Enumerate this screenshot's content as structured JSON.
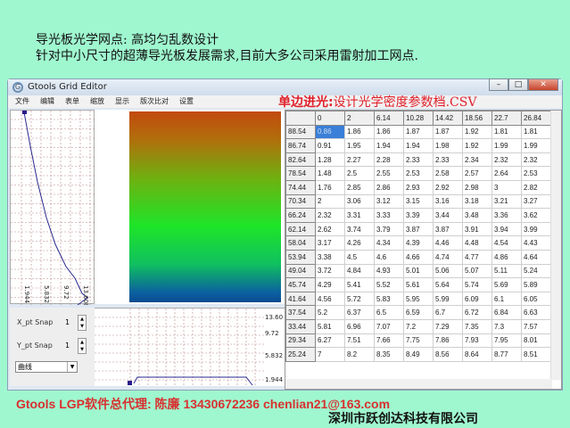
{
  "heading": {
    "line1": "导光板光学网点: 高均匀乱数设计",
    "line2": "针对中小尺寸的超薄导光板发展需求,目前大多公司采用雷射加工网点."
  },
  "window": {
    "title": "Gtools Grid Editor",
    "icon": "app-icon",
    "controls": [
      "minimize",
      "maximize",
      "close"
    ]
  },
  "menu": [
    "文件",
    "编辑",
    "表单",
    "缩放",
    "显示",
    "版次比对",
    "设置"
  ],
  "overlay_title": {
    "bold": "单边进光:",
    "rest": "设计光学密度参数档.CSV"
  },
  "curve_panel": {
    "labels": [
      "1.944",
      "5.832",
      "9.72",
      "13.608"
    ]
  },
  "controls": {
    "x_snap_label": "X_pt Snap",
    "x_snap_value": "1",
    "y_snap_label": "Y_pt Snap",
    "y_snap_value": "1",
    "mode": "曲线"
  },
  "bottom_chart": {
    "labels": [
      "13.60",
      "9.72",
      "5.832",
      "1.944"
    ]
  },
  "table": {
    "columns": [
      "0",
      "2",
      "6.14",
      "10.28",
      "14.42",
      "18.56",
      "22.7",
      "26.84"
    ],
    "rows": [
      {
        "h": "88.54",
        "v": [
          "0.86",
          "1.86",
          "1.86",
          "1.87",
          "1.87",
          "1.92",
          "1.81",
          "1.81"
        ]
      },
      {
        "h": "86.74",
        "v": [
          "0.91",
          "1.95",
          "1.94",
          "1.94",
          "1.98",
          "1.92",
          "1.99",
          "1.99"
        ]
      },
      {
        "h": "82.64",
        "v": [
          "1.28",
          "2.27",
          "2.28",
          "2.33",
          "2.33",
          "2.34",
          "2.32",
          "2.32"
        ]
      },
      {
        "h": "78.54",
        "v": [
          "1.48",
          "2.5",
          "2.55",
          "2.53",
          "2.58",
          "2.57",
          "2.64",
          "2.53"
        ]
      },
      {
        "h": "74.44",
        "v": [
          "1.76",
          "2.85",
          "2.86",
          "2.93",
          "2.92",
          "2.98",
          "3",
          "2.82"
        ]
      },
      {
        "h": "70.34",
        "v": [
          "2",
          "3.06",
          "3.12",
          "3.15",
          "3.16",
          "3.18",
          "3.21",
          "3.27"
        ]
      },
      {
        "h": "66.24",
        "v": [
          "2.32",
          "3.31",
          "3.33",
          "3.39",
          "3.44",
          "3.48",
          "3.36",
          "3.62"
        ]
      },
      {
        "h": "62.14",
        "v": [
          "2.62",
          "3.74",
          "3.79",
          "3.87",
          "3.87",
          "3.91",
          "3.94",
          "3.99"
        ]
      },
      {
        "h": "58.04",
        "v": [
          "3.17",
          "4.26",
          "4.34",
          "4.39",
          "4.46",
          "4.48",
          "4.54",
          "4.43"
        ]
      },
      {
        "h": "53.94",
        "v": [
          "3.38",
          "4.5",
          "4.6",
          "4.66",
          "4.74",
          "4.77",
          "4.86",
          "4.64"
        ]
      },
      {
        "h": "49.04",
        "v": [
          "3.72",
          "4.84",
          "4.93",
          "5.01",
          "5.06",
          "5.07",
          "5.11",
          "5.24"
        ]
      },
      {
        "h": "45.74",
        "v": [
          "4.29",
          "5.41",
          "5.52",
          "5.61",
          "5.64",
          "5.74",
          "5.69",
          "5.89"
        ]
      },
      {
        "h": "41.64",
        "v": [
          "4.56",
          "5.72",
          "5.83",
          "5.95",
          "5.99",
          "6.09",
          "6.1",
          "6.05"
        ]
      },
      {
        "h": "37.54",
        "v": [
          "5.2",
          "6.37",
          "6.5",
          "6.59",
          "6.7",
          "6.72",
          "6.84",
          "6.63"
        ]
      },
      {
        "h": "33.44",
        "v": [
          "5.81",
          "6.96",
          "7.07",
          "7.2",
          "7.29",
          "7.35",
          "7.3",
          "7.57"
        ]
      },
      {
        "h": "29.34",
        "v": [
          "6.27",
          "7.51",
          "7.66",
          "7.75",
          "7.86",
          "7.93",
          "7.95",
          "8.01"
        ]
      },
      {
        "h": "25.24",
        "v": [
          "7",
          "8.2",
          "8.35",
          "8.49",
          "8.56",
          "8.64",
          "8.77",
          "8.51"
        ]
      }
    ]
  },
  "footer": {
    "line1": "Gtools LGP软件总代理: 陈廉  13430672236    chenlian21@163.com",
    "line2": "深圳市跃创达科技有限公司"
  },
  "colors": {
    "background": "#9ff7cf",
    "accent_red": "#e0202a",
    "selection": "#3a7fd8"
  }
}
